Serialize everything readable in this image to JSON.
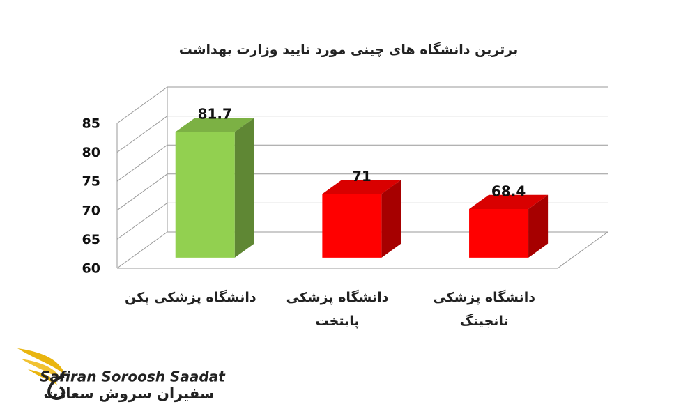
{
  "chart_data": {
    "type": "bar3d",
    "title": "برترین دانشگاه های چینی مورد تایید وزارت بهداشت",
    "categories": [
      "دانشگاه پزشکی پکن",
      "دانشگاه پزشکی پایتخت",
      "دانشگاه پزشکی نانجینگ"
    ],
    "values": [
      81.7,
      71,
      68.4
    ],
    "colors": [
      "#92d050",
      "#ff0000",
      "#ff0000"
    ],
    "ylim": [
      60,
      85
    ],
    "yticks": [
      60,
      65,
      70,
      75,
      80,
      85
    ],
    "grid": true
  },
  "logo": {
    "name": "Safiran Soroosh Saadat",
    "name_fa": "سفیران سروش سعادت"
  }
}
